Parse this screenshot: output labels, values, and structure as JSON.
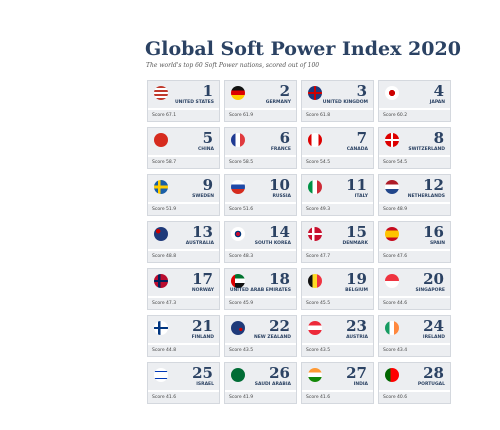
{
  "header": {
    "title": "Global Soft Power Index 2020",
    "subtitle": "The world's top 60 Soft Power nations, scored out of 100"
  },
  "cards": [
    {
      "rank": 1,
      "country": "UNITED STATES",
      "score": "Score 67.1"
    },
    {
      "rank": 2,
      "country": "GERMANY",
      "score": "Score 61.9"
    },
    {
      "rank": 3,
      "country": "UNITED KINGDOM",
      "score": "Score 61.8"
    },
    {
      "rank": 4,
      "country": "JAPAN",
      "score": "Score 60.2"
    },
    {
      "rank": 5,
      "country": "CHINA",
      "score": "Score 58.7"
    },
    {
      "rank": 6,
      "country": "FRANCE",
      "score": "Score 58.5"
    },
    {
      "rank": 7,
      "country": "CANADA",
      "score": "Score 54.5"
    },
    {
      "rank": 8,
      "country": "SWITZERLAND",
      "score": "Score 54.5"
    },
    {
      "rank": 9,
      "country": "SWEDEN",
      "score": "Score 51.9"
    },
    {
      "rank": 10,
      "country": "RUSSIA",
      "score": "Score 51.6"
    },
    {
      "rank": 11,
      "country": "ITALY",
      "score": "Score 49.3"
    },
    {
      "rank": 12,
      "country": "NETHERLANDS",
      "score": "Score 48.9"
    },
    {
      "rank": 13,
      "country": "AUSTRALIA",
      "score": "Score 48.8"
    },
    {
      "rank": 14,
      "country": "SOUTH KOREA",
      "score": "Score 48.3"
    },
    {
      "rank": 15,
      "country": "DENMARK",
      "score": "Score 47.7"
    },
    {
      "rank": 16,
      "country": "SPAIN",
      "score": "Score 47.6"
    },
    {
      "rank": 17,
      "country": "NORWAY",
      "score": "Score 47.3"
    },
    {
      "rank": 18,
      "country": "UNITED ARAB EMIRATES",
      "score": "Score 45.9"
    },
    {
      "rank": 19,
      "country": "BELGIUM",
      "score": "Score 45.5"
    },
    {
      "rank": 20,
      "country": "SINGAPORE",
      "score": "Score 44.6"
    },
    {
      "rank": 21,
      "country": "FINLAND",
      "score": "Score 44.8"
    },
    {
      "rank": 22,
      "country": "NEW ZEALAND",
      "score": "Score 43.5"
    },
    {
      "rank": 23,
      "country": "AUSTRIA",
      "score": "Score 43.5"
    },
    {
      "rank": 24,
      "country": "IRELAND",
      "score": "Score 43.4"
    },
    {
      "rank": 25,
      "country": "ISRAEL",
      "score": "Score 41.6"
    },
    {
      "rank": 26,
      "country": "SAUDI ARABIA",
      "score": "Score 41.9"
    },
    {
      "rank": 27,
      "country": "INDIA",
      "score": "Score 41.6"
    },
    {
      "rank": 28,
      "country": "PORTUGAL",
      "score": "Score 40.6"
    }
  ]
}
